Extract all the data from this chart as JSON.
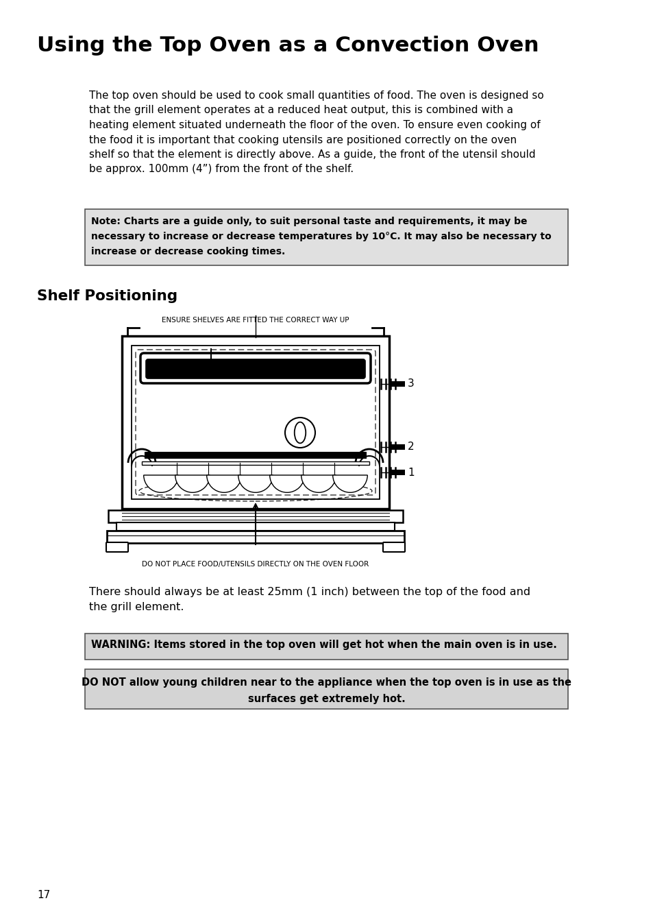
{
  "title": "Using the Top Oven as a Convection Oven",
  "body_text_lines": [
    "The top oven should be used to cook small quantities of food. The oven is designed so",
    "that the grill element operates at a reduced heat output, this is combined with a",
    "heating element situated underneath the floor of the oven. To ensure even cooking of",
    "the food it is important that cooking utensils are positioned correctly on the oven",
    "shelf so that the element is directly above. As a guide, the front of the utensil should",
    "be approx. 100mm (4”) from the front of the shelf."
  ],
  "note_lines": [
    "Note: Charts are a guide only, to suit personal taste and requirements, it may be",
    "necessary to increase or decrease temperatures by 10°C. It may also be necessary to",
    "increase or decrease cooking times."
  ],
  "shelf_heading": "Shelf Positioning",
  "label_above": "ENSURE SHELVES ARE FITTED THE CORRECT WAY UP",
  "label_below": "DO NOT PLACE FOOD/UTENSILS DIRECTLY ON THE OVEN FLOOR",
  "text_after_lines": [
    "There should always be at least 25mm (1 inch) between the top of the food and",
    "the grill element."
  ],
  "warning1": "WARNING: Items stored in the top oven will get hot when the main oven is in use.",
  "warning2_lines": [
    "DO NOT allow young children near to the appliance when the top oven is in use as the",
    "surfaces get extremely hot."
  ],
  "page_number": "17",
  "bg_color": "#ffffff",
  "note_bg": "#e0e0e0",
  "warn1_bg": "#d4d4d4",
  "warn2_bg": "#d4d4d4"
}
